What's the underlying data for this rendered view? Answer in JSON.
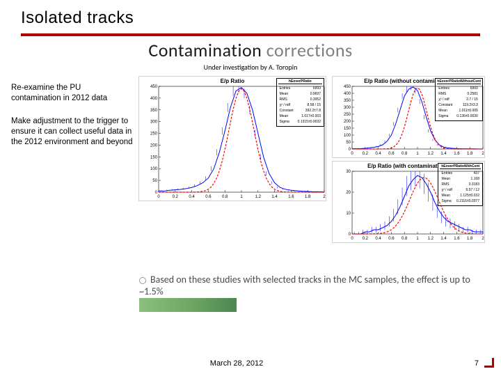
{
  "title": "Isolated tracks",
  "subtitle": {
    "dark": "Contamination",
    "light": "corrections"
  },
  "byline": "Under investigation by A. Toropin",
  "left_paragraphs": [
    "Re-examine the PU contamination in 2012 data",
    "Make adjustment to the trigger to ensure it can collect useful data in the 2012 environment and beyond"
  ],
  "chart_big": {
    "title": "E/p Ratio",
    "statbox": {
      "hdr": "hEoverPRatio",
      "rows": [
        [
          "Entries",
          "6993"
        ],
        [
          "Mean",
          "0.9697"
        ],
        [
          "RMS",
          "0.3052"
        ],
        [
          "χ² / ndf",
          "8.58 / 15"
        ],
        [
          "Constant",
          "392.2±7.8"
        ],
        [
          "Mean",
          "1.017±0.003"
        ],
        [
          "Sigma",
          "0.1315±0.0032"
        ]
      ]
    },
    "hist_color": "#0000ff",
    "fit_color": "#ff0000",
    "x_min": 0,
    "x_max": 2,
    "x_step": 0.2,
    "y_max": 450,
    "y_step": 50,
    "bins": [
      5,
      8,
      10,
      12,
      15,
      20,
      28,
      40,
      60,
      100,
      170,
      260,
      360,
      430,
      445,
      420,
      350,
      250,
      150,
      80,
      40,
      20,
      12,
      8,
      6,
      4,
      3,
      2,
      2,
      1
    ],
    "peak_x": 1.0,
    "sigma": 0.15,
    "amp": 440
  },
  "chart_sm1": {
    "title": "E/p Ratio (without contamination)",
    "statbox": {
      "hdr": "hEoverPRatioWithoutCont",
      "rows": [
        [
          "Entries",
          "6993"
        ],
        [
          "RMS",
          "0.2581"
        ],
        [
          "χ² / ndf",
          "2.7 / 15"
        ],
        [
          "Constant",
          "119.2±3.3"
        ],
        [
          "Mean",
          "1.011±0.005"
        ],
        [
          "Sigma",
          "0.136±0.0030"
        ]
      ]
    },
    "hist_color": "#0000ff",
    "fit_color": "#ff0000",
    "x_min": 0,
    "x_max": 2,
    "x_step": 0.2,
    "y_max": 450,
    "y_step": 50,
    "bins": [
      2,
      3,
      5,
      8,
      12,
      18,
      30,
      55,
      100,
      180,
      280,
      380,
      430,
      445,
      420,
      340,
      230,
      130,
      65,
      30,
      14,
      8,
      5,
      3,
      2,
      1,
      1,
      1,
      0,
      0
    ],
    "peak_x": 1.0,
    "sigma": 0.14,
    "amp": 440
  },
  "chart_sm2": {
    "title": "E/p Ratio (with contamination-)",
    "statbox": {
      "hdr": "hEoverPRatioWithCont",
      "rows": [
        [
          "Entries",
          "437"
        ],
        [
          "Mean",
          "1.168"
        ],
        [
          "RMS",
          "0.3183"
        ],
        [
          "χ² / ndf",
          "6.57 / 12"
        ],
        [
          "Mean",
          "1.125±0.032"
        ],
        [
          "Sigma",
          "0.2116±0.0377"
        ]
      ]
    },
    "hist_color": "#0000ff",
    "fit_color": "#ff0000",
    "x_min": 0,
    "x_max": 2,
    "x_step": 0.2,
    "y_max": 30,
    "y_step": 10,
    "bins": [
      0,
      0,
      1,
      1,
      2,
      2,
      3,
      4,
      6,
      9,
      13,
      18,
      23,
      26,
      28,
      27,
      24,
      20,
      15,
      11,
      8,
      6,
      5,
      4,
      3,
      2,
      2,
      1,
      1,
      1
    ],
    "peak_x": 1.1,
    "sigma": 0.22,
    "amp": 27
  },
  "conclusion": "Based on these studies with selected tracks in the MC samples, the effect is up to ~1.5%",
  "footer": {
    "date": "March 28, 2012",
    "page": "7"
  }
}
